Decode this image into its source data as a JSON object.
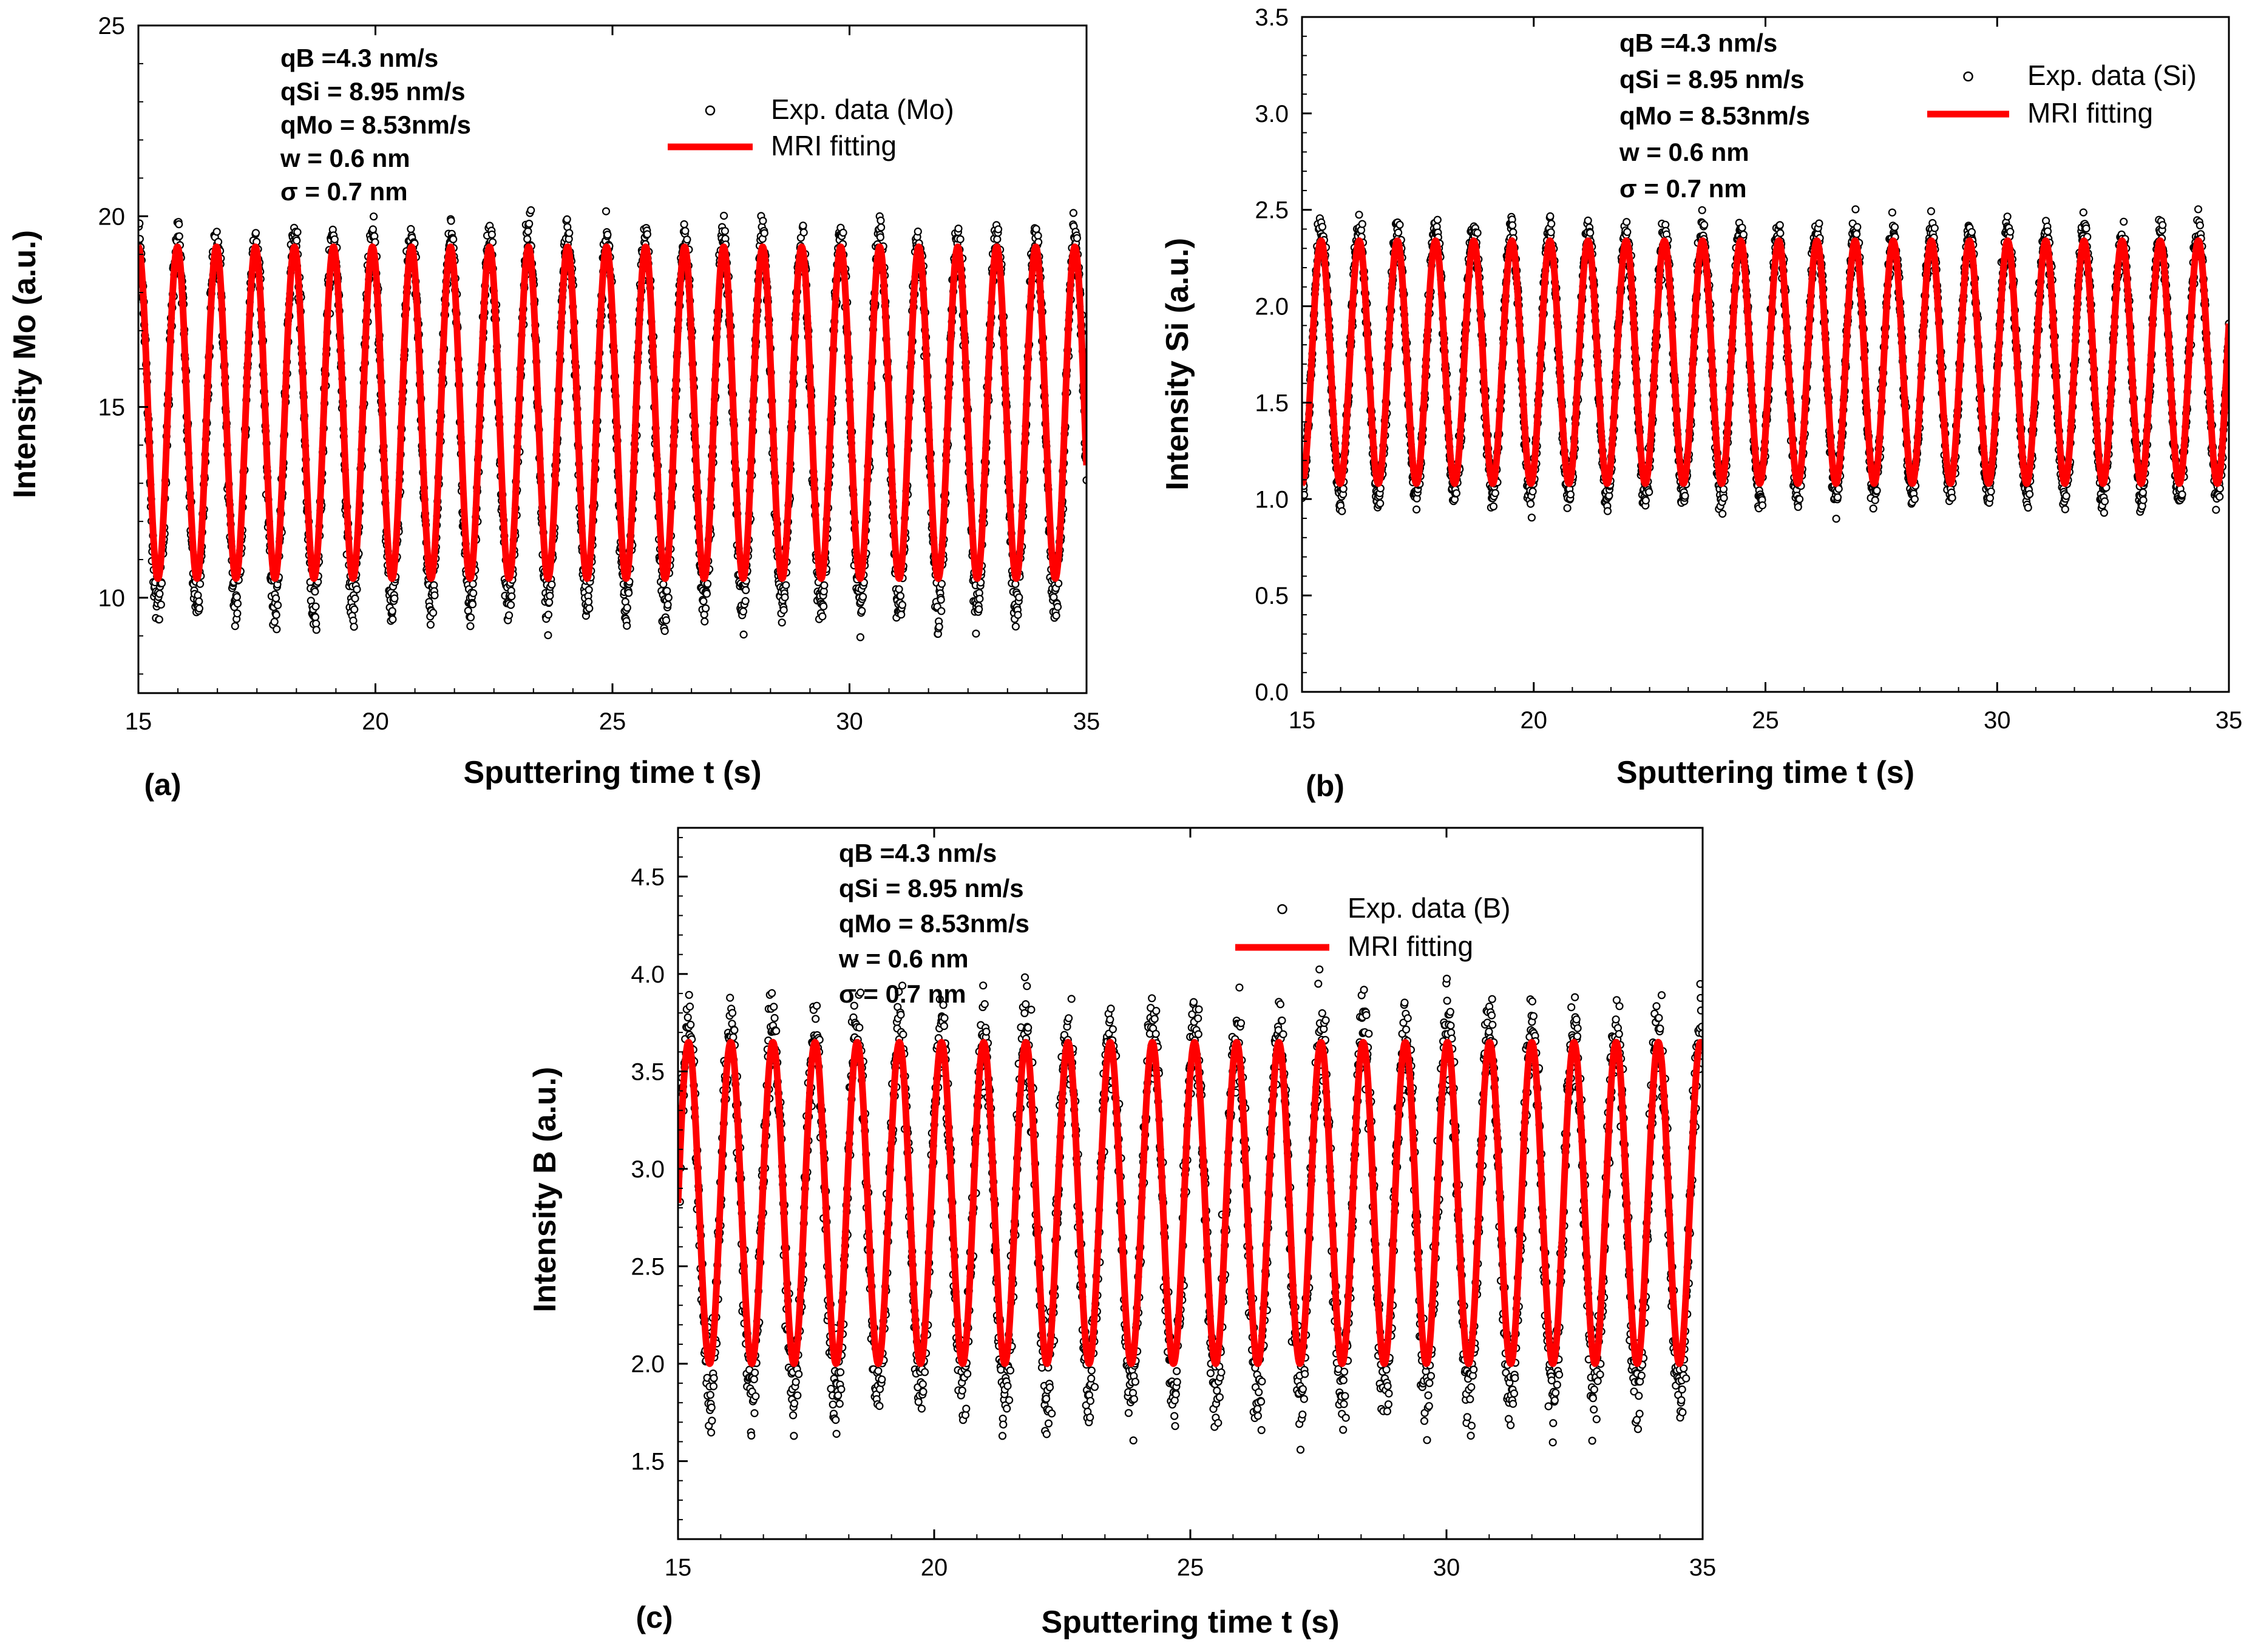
{
  "chart_data": [
    {
      "type": "scatter",
      "panel_label": "(a)",
      "xlabel": "Sputtering time t (s)",
      "ylabel": "Intensity Mo  (a.u.)",
      "xlim": [
        15,
        35
      ],
      "ylim": [
        7.5,
        25
      ],
      "xticks": [
        15,
        20,
        25,
        30,
        35
      ],
      "xtick_labels": [
        "15",
        "20",
        "25",
        "30",
        "35"
      ],
      "yticks": [
        10,
        15,
        20,
        25
      ],
      "ytick_labels": [
        "10",
        "15",
        "20",
        "25"
      ],
      "parameters": [
        "qB =4.3 nm/s",
        "qSi = 8.95 nm/s",
        "qMo = 8.53nm/s",
        "w = 0.6 nm",
        "σ = 0.7 nm"
      ],
      "legend": {
        "entries": [
          "Exp. data (Mo)",
          "MRI fitting"
        ],
        "placement": "top-right"
      },
      "series": [
        {
          "name": "Exp. data (Mo)",
          "kind": "scatter",
          "color": "#000000",
          "period_s": 0.823,
          "min": 9.8,
          "max": 19.4,
          "phase_at_start": "max",
          "noise": 0.35
        },
        {
          "name": "MRI fitting",
          "kind": "line",
          "color": "#ff0000",
          "period_s": 0.823,
          "min": 10.5,
          "max": 19.2,
          "phase_at_start": "max"
        }
      ]
    },
    {
      "type": "scatter",
      "panel_label": "(b)",
      "xlabel": "Sputtering time t (s)",
      "ylabel": "Intensity Si  (a.u.)",
      "xlim": [
        15,
        35
      ],
      "ylim": [
        0.0,
        3.5
      ],
      "xticks": [
        15,
        20,
        25,
        30,
        35
      ],
      "xtick_labels": [
        "15",
        "20",
        "25",
        "30",
        "35"
      ],
      "yticks": [
        0.0,
        0.5,
        1.0,
        1.5,
        2.0,
        2.5,
        3.0,
        3.5
      ],
      "ytick_labels": [
        "0.0",
        "0.5",
        "1.0",
        "1.5",
        "2.0",
        "2.5",
        "3.0",
        "3.5"
      ],
      "parameters": [
        "qB =4.3 nm/s",
        "qSi = 8.95 nm/s",
        "qMo = 8.53nm/s",
        "w = 0.6 nm",
        "σ = 0.7 nm"
      ],
      "legend": {
        "entries": [
          "Exp. data (Si)",
          "MRI fitting"
        ],
        "placement": "top-right"
      },
      "series": [
        {
          "name": "Exp. data (Si)",
          "kind": "scatter",
          "color": "#000000",
          "period_s": 0.823,
          "min": 1.02,
          "max": 2.38,
          "phase_at_start": "min",
          "noise": 0.05
        },
        {
          "name": "MRI fitting",
          "kind": "line",
          "color": "#ff0000",
          "period_s": 0.823,
          "min": 1.08,
          "max": 2.34,
          "phase_at_start": "min"
        }
      ]
    },
    {
      "type": "scatter",
      "panel_label": "(c)",
      "xlabel": "Sputtering time t (s)",
      "ylabel": "Intensity B (a.u.)",
      "xlim": [
        15,
        35
      ],
      "ylim": [
        1.1,
        4.75
      ],
      "xticks": [
        15,
        20,
        25,
        30,
        35
      ],
      "xtick_labels": [
        "15",
        "20",
        "25",
        "30",
        "35"
      ],
      "yticks": [
        1.5,
        2.0,
        2.5,
        3.0,
        3.5,
        4.0,
        4.5
      ],
      "ytick_labels": [
        "1.5",
        "2.0",
        "2.5",
        "3.0",
        "3.5",
        "4.0",
        "4.5"
      ],
      "parameters": [
        "qB =4.3 nm/s",
        "qSi = 8.95 nm/s",
        "qMo = 8.53nm/s",
        "w = 0.6 nm",
        "σ = 0.7 nm"
      ],
      "legend": {
        "entries": [
          "Exp. data (B)",
          "MRI fitting"
        ],
        "placement": "top-right"
      },
      "series": [
        {
          "name": "Exp. data (B)",
          "kind": "scatter",
          "color": "#000000",
          "period_s": 0.823,
          "min": 1.85,
          "max": 3.72,
          "phase_at_start": "mid",
          "noise": 0.12
        },
        {
          "name": "MRI fitting",
          "kind": "line",
          "color": "#ff0000",
          "period_s": 0.823,
          "min": 2.0,
          "max": 3.65,
          "phase_at_start": "mid"
        }
      ]
    }
  ]
}
